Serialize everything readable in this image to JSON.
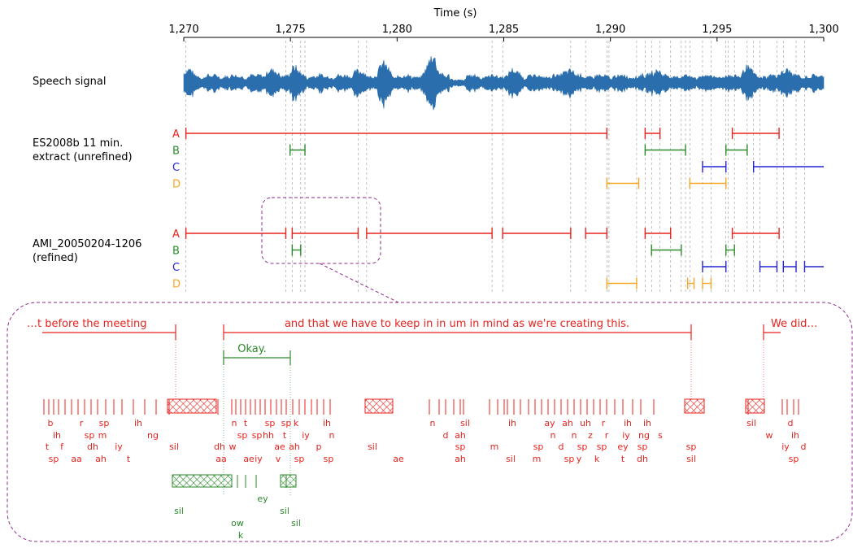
{
  "axis": {
    "title": "Time (s)",
    "ticks": [
      {
        "value": 1270,
        "label": "1,270"
      },
      {
        "value": 1275,
        "label": "1,275"
      },
      {
        "value": 1280,
        "label": "1,280"
      },
      {
        "value": 1285,
        "label": "1,285"
      },
      {
        "value": 1290,
        "label": "1,290"
      },
      {
        "value": 1295,
        "label": "1,295"
      },
      {
        "value": 1300,
        "label": "1,300"
      }
    ],
    "range": [
      1270,
      1300.1
    ]
  },
  "colors": {
    "A": "#e8231f",
    "B": "#2a8a2a",
    "C": "#2323d6",
    "D": "#f5a623",
    "signal": "#2a6ead",
    "callout": "#8e2b8e"
  },
  "rows": {
    "signal_label": "Speech signal",
    "unrefined_label_1": "ES2008b 11 min.",
    "unrefined_label_2": "extract (unrefined)",
    "refined_label_1": "AMI_20050204-1206",
    "refined_label_2": "(refined)",
    "speakers": [
      "A",
      "B",
      "C",
      "D"
    ]
  },
  "unrefined": {
    "A": [
      [
        1270.1,
        1289.9
      ],
      [
        1291.7,
        1292.4
      ],
      [
        1295.8,
        1298
      ]
    ],
    "B": [
      [
        1275,
        1275.7
      ],
      [
        1291.7,
        1293.6
      ],
      [
        1295.5,
        1296.5
      ]
    ],
    "C": [
      [
        1294.4,
        1295.5
      ],
      [
        1296.8,
        1300.1
      ]
    ],
    "D": [
      [
        1289.9,
        1291.4
      ],
      [
        1293.8,
        1295.5
      ]
    ]
  },
  "refined": {
    "A": [
      [
        1270.1,
        1274.8
      ],
      [
        1275.1,
        1278.2
      ],
      [
        1278.6,
        1284.5
      ],
      [
        1285,
        1288.2
      ],
      [
        1288.9,
        1289.9
      ],
      [
        1291.7,
        1292.9
      ],
      [
        1295.8,
        1298
      ]
    ],
    "B": [
      [
        1275.1,
        1275.5
      ],
      [
        1292,
        1293.4
      ],
      [
        1295.5,
        1295.9
      ]
    ],
    "C": [
      [
        1294.4,
        1295.5
      ],
      [
        1297.1,
        1297.9
      ],
      [
        1298.2,
        1298.8
      ],
      [
        1299.2,
        1300.1
      ]
    ],
    "D": [
      [
        1289.9,
        1291.3
      ],
      [
        1293.7,
        1294
      ],
      [
        1294.4,
        1294.8
      ]
    ]
  },
  "grid_times": [
    1270.1,
    1274.8,
    1275.1,
    1275.5,
    1275.7,
    1278.2,
    1278.6,
    1284.5,
    1285,
    1288.2,
    1288.9,
    1289.9,
    1290,
    1291.3,
    1291.7,
    1292,
    1292.4,
    1292.9,
    1293.4,
    1293.6,
    1293.8,
    1294.4,
    1294.8,
    1295.5,
    1295.6,
    1295.9,
    1296.5,
    1296.8,
    1297.1,
    1297.9,
    1298.2,
    1298.8,
    1299.2
  ],
  "zoom": {
    "word_a_1": "…t before the meeting",
    "word_a_2": "and that we have to keep in in um in mind as we're creating this.",
    "word_a_3": "We did…",
    "word_b_1": "Okay.",
    "phones_a": [
      {
        "t": "b",
        "col": 0,
        "row": 0
      },
      {
        "t": "r",
        "col": 1,
        "row": 0
      },
      {
        "t": "sp",
        "col": 2,
        "row": 0
      },
      {
        "t": "ih",
        "col": 3,
        "row": 0
      },
      {
        "t": "ih",
        "col": 4,
        "row": 1
      },
      {
        "t": "sp",
        "col": 5,
        "row": 1
      },
      {
        "t": "m",
        "col": 6,
        "row": 1
      },
      {
        "t": "ng",
        "col": 7,
        "row": 1
      },
      {
        "t": "t",
        "col": 8,
        "row": 2
      },
      {
        "t": "f",
        "col": 9,
        "row": 2
      },
      {
        "t": "dh",
        "col": 10,
        "row": 2
      },
      {
        "t": "iy",
        "col": 11,
        "row": 2
      },
      {
        "t": "sil",
        "col": 12,
        "row": 2
      },
      {
        "t": "sp",
        "col": 13,
        "row": 3
      },
      {
        "t": "aa",
        "col": 14,
        "row": 3
      },
      {
        "t": "ah",
        "col": 15,
        "row": 3
      },
      {
        "t": "t",
        "col": 16,
        "row": 3
      },
      {
        "t": "n",
        "col": 17,
        "row": 0
      },
      {
        "t": "t",
        "col": 18,
        "row": 0
      },
      {
        "t": "sp",
        "col": 19,
        "row": 0
      },
      {
        "t": "sp",
        "col": 20,
        "row": 0
      },
      {
        "t": "k",
        "col": 21,
        "row": 0
      },
      {
        "t": "ih",
        "col": 22,
        "row": 0
      },
      {
        "t": "sp",
        "col": 23,
        "row": 1
      },
      {
        "t": "sp",
        "col": 24,
        "row": 1
      },
      {
        "t": "hh",
        "col": 25,
        "row": 1
      },
      {
        "t": "t",
        "col": 26,
        "row": 1
      },
      {
        "t": "iy",
        "col": 27,
        "row": 1
      },
      {
        "t": "n",
        "col": 28,
        "row": 1
      },
      {
        "t": "dh",
        "col": 29,
        "row": 2
      },
      {
        "t": "w",
        "col": 30,
        "row": 2
      },
      {
        "t": "ae",
        "col": 31,
        "row": 2
      },
      {
        "t": "ah",
        "col": 32,
        "row": 2
      },
      {
        "t": "p",
        "col": 33,
        "row": 2
      },
      {
        "t": "sil",
        "col": 34,
        "row": 2
      },
      {
        "t": "aa",
        "col": 35,
        "row": 3
      },
      {
        "t": "ae",
        "col": 36,
        "row": 3
      },
      {
        "t": "iy",
        "col": 37,
        "row": 3
      },
      {
        "t": "v",
        "col": 38,
        "row": 3
      },
      {
        "t": "sp",
        "col": 39,
        "row": 3
      },
      {
        "t": "sp",
        "col": 40,
        "row": 3
      },
      {
        "t": "ae",
        "col": 41,
        "row": 3
      },
      {
        "t": "n",
        "col": 42,
        "row": 0
      },
      {
        "t": "sil",
        "col": 43,
        "row": 0
      },
      {
        "t": "ih",
        "col": 44,
        "row": 0
      },
      {
        "t": "ay",
        "col": 45,
        "row": 0
      },
      {
        "t": "ah",
        "col": 46,
        "row": 0
      },
      {
        "t": "uh",
        "col": 47,
        "row": 0
      },
      {
        "t": "r",
        "col": 48,
        "row": 0
      },
      {
        "t": "ih",
        "col": 49,
        "row": 0
      },
      {
        "t": "ih",
        "col": 50,
        "row": 0
      },
      {
        "t": "d",
        "col": 51,
        "row": 1
      },
      {
        "t": "ah",
        "col": 52,
        "row": 1
      },
      {
        "t": "n",
        "col": 53,
        "row": 1
      },
      {
        "t": "n",
        "col": 54,
        "row": 1
      },
      {
        "t": "z",
        "col": 55,
        "row": 1
      },
      {
        "t": "r",
        "col": 56,
        "row": 1
      },
      {
        "t": "iy",
        "col": 57,
        "row": 1
      },
      {
        "t": "ng",
        "col": 58,
        "row": 1
      },
      {
        "t": "s",
        "col": 59,
        "row": 1
      },
      {
        "t": "sp",
        "col": 60,
        "row": 2
      },
      {
        "t": "m",
        "col": 61,
        "row": 2
      },
      {
        "t": "sp",
        "col": 62,
        "row": 2
      },
      {
        "t": "d",
        "col": 63,
        "row": 2
      },
      {
        "t": "sp",
        "col": 64,
        "row": 2
      },
      {
        "t": "sp",
        "col": 65,
        "row": 2
      },
      {
        "t": "ey",
        "col": 66,
        "row": 2
      },
      {
        "t": "sp",
        "col": 67,
        "row": 2
      },
      {
        "t": "sp",
        "col": 68,
        "row": 2
      },
      {
        "t": "ah",
        "col": 69,
        "row": 3
      },
      {
        "t": "sil",
        "col": 70,
        "row": 3
      },
      {
        "t": "m",
        "col": 71,
        "row": 3
      },
      {
        "t": "sp",
        "col": 72,
        "row": 3
      },
      {
        "t": "y",
        "col": 73,
        "row": 3
      },
      {
        "t": "k",
        "col": 74,
        "row": 3
      },
      {
        "t": "t",
        "col": 75,
        "row": 3
      },
      {
        "t": "dh",
        "col": 76,
        "row": 3
      },
      {
        "t": "sil",
        "col": 77,
        "row": 3
      },
      {
        "t": "sil",
        "col": 78,
        "row": 0
      },
      {
        "t": "d",
        "col": 79,
        "row": 0
      },
      {
        "t": "w",
        "col": 80,
        "row": 1
      },
      {
        "t": "ih",
        "col": 81,
        "row": 1
      },
      {
        "t": "iy",
        "col": 82,
        "row": 2
      },
      {
        "t": "d",
        "col": 83,
        "row": 2
      },
      {
        "t": "sp",
        "col": 84,
        "row": 3
      }
    ],
    "phones_b": [
      {
        "t": "sil",
        "col": 0,
        "row": 0
      },
      {
        "t": "sil",
        "col": 1,
        "row": 0
      },
      {
        "t": "ey",
        "col": 2,
        "row": 1
      },
      {
        "t": "ow",
        "col": 3,
        "row": 2
      },
      {
        "t": "sil",
        "col": 4,
        "row": 2
      },
      {
        "t": "k",
        "col": 5,
        "row": 3
      }
    ]
  }
}
